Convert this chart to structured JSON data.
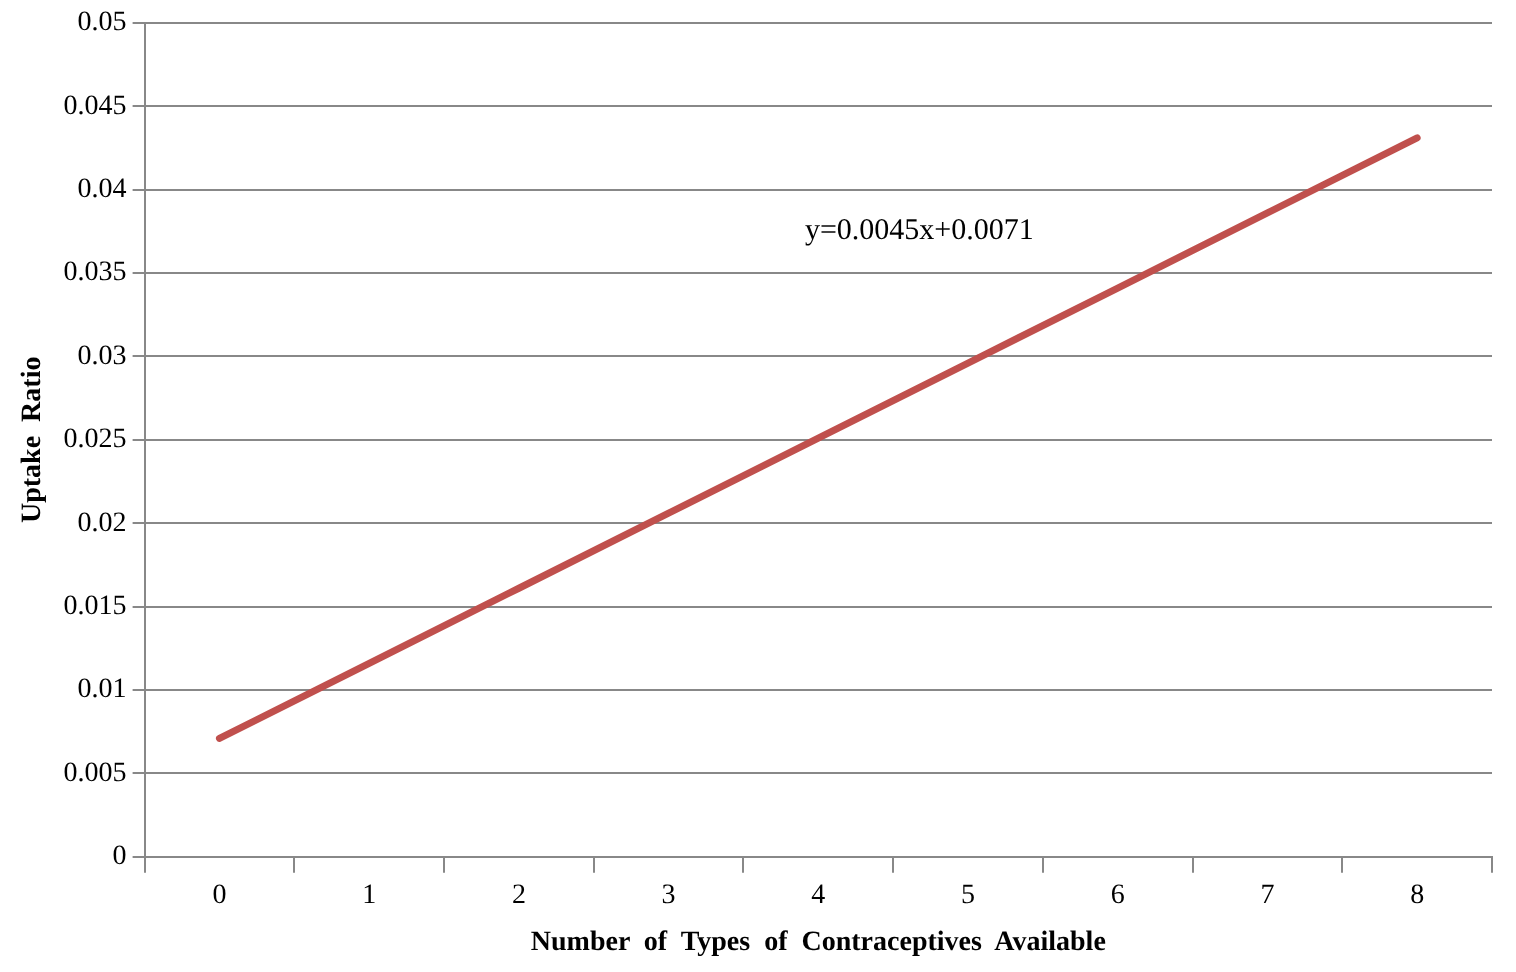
{
  "chart_data": {
    "type": "line",
    "xlabel": "Number  of  Types  of  Contraceptives  Available",
    "ylabel": "Uptake  Ratio",
    "categories": [
      "0",
      "1",
      "2",
      "3",
      "4",
      "5",
      "6",
      "7",
      "8"
    ],
    "series": [
      {
        "color": "#c0504d",
        "values": [
          0.0071,
          0.0116,
          0.0161,
          0.0206,
          0.0251,
          0.0296,
          0.0341,
          0.0386,
          0.0431
        ]
      }
    ],
    "ylim": [
      0,
      0.05
    ],
    "yticks": [
      0,
      0.005,
      0.01,
      0.015,
      0.02,
      0.025,
      0.03,
      0.035,
      0.04,
      0.045,
      0.05
    ],
    "grid": "y",
    "legend": false,
    "marker": "none",
    "line_style": "solid",
    "annotations": [
      "y=0.0045x+0.0071"
    ]
  }
}
